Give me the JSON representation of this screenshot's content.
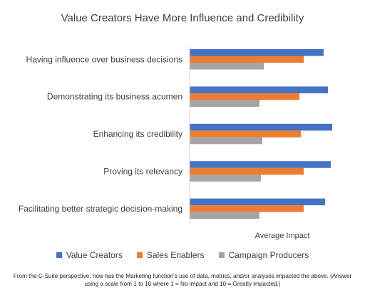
{
  "chart_data": {
    "type": "bar",
    "orientation": "horizontal",
    "title": "Value Creators Have More Influence and Credibility",
    "xlabel": "Average Impact",
    "ylabel": "",
    "xlim": [
      0,
      10
    ],
    "grid": false,
    "legend_position": "bottom",
    "categories": [
      "Having influence over business decisions",
      "Demonstrating its business acumen",
      "Enhancing its credibility",
      "Proving its relevancy",
      "Facilitating better strategic decision-making"
    ],
    "series": [
      {
        "name": "Value Creators",
        "color": "#4472C4",
        "values": [
          9.4,
          9.7,
          10.0,
          9.9,
          9.5
        ]
      },
      {
        "name": "Sales Enablers",
        "color": "#ED7D31",
        "values": [
          8.0,
          7.7,
          7.8,
          8.0,
          8.0
        ]
      },
      {
        "name": "Campaign Producers",
        "color": "#A5A5A5",
        "values": [
          5.2,
          4.9,
          5.1,
          5.0,
          4.9
        ]
      }
    ]
  },
  "footnote": "From the C-Suite perspective, how has the Marketing function's use of data, metrics, and/or analyses impacted the above. (Answer using a scale from 1 to 10 where 1 = No impact and 10 = Greatly impacted.)"
}
